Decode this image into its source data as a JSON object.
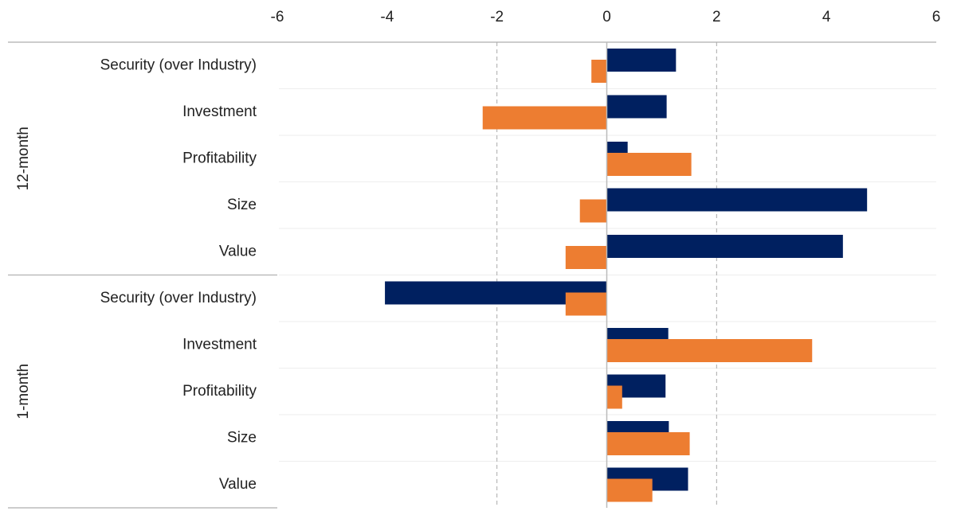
{
  "chart_data": {
    "type": "hbar",
    "groups": [
      "12-month",
      "1-month"
    ],
    "categories": [
      "Security (over Industry)",
      "Investment",
      "Profitability",
      "Size",
      "Value",
      "Security (over Industry)",
      "Investment",
      "Profitability",
      "Size",
      "Value"
    ],
    "series": [
      {
        "color": "#002060",
        "values": [
          1.26,
          1.09,
          0.38,
          4.74,
          4.3,
          -4.04,
          1.12,
          1.07,
          1.13,
          1.48
        ]
      },
      {
        "color": "#ED7D31",
        "values": [
          -0.28,
          -2.26,
          1.54,
          -0.49,
          -0.75,
          -0.75,
          3.74,
          0.28,
          1.51,
          0.83
        ]
      }
    ],
    "xlim": [
      -6,
      6
    ],
    "xticks": [
      -6,
      -4,
      -2,
      0,
      2,
      4,
      6
    ],
    "x_gridlines": [
      -2,
      2
    ]
  }
}
